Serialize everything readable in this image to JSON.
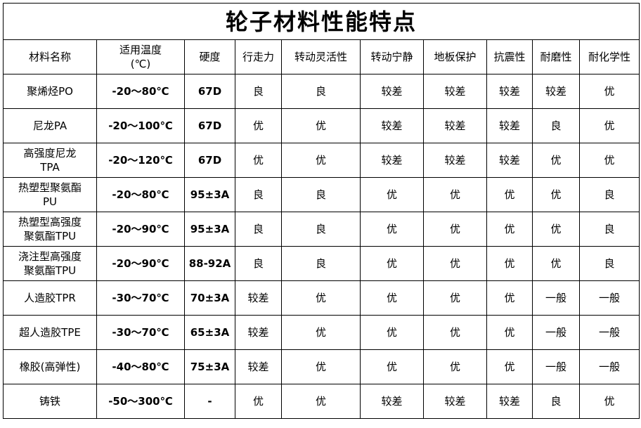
{
  "title": "轮子材料性能特点",
  "headers": [
    "材料名称",
    "适用温度\n(℃)",
    "硬度",
    "行走力",
    "转动灵活性",
    "转动宁静",
    "地板保护",
    "抗震性",
    "耐磨性",
    "耐化学性"
  ],
  "rows": [
    [
      "聚烯烃PO",
      "-20～80℃",
      "67D",
      "良",
      "良",
      "较差",
      "较差",
      "较差",
      "较差",
      "优"
    ],
    [
      "尼龙PA",
      "-20～100℃",
      "67D",
      "优",
      "优",
      "较差",
      "较差",
      "较差",
      "良",
      "优"
    ],
    [
      "高强度尼龙\nTPA",
      "-20～120℃",
      "67D",
      "优",
      "优",
      "较差",
      "较差",
      "较差",
      "优",
      "优"
    ],
    [
      "热塑型聚氨酯\nPU",
      "-20～80℃",
      "95±3A",
      "良",
      "良",
      "优",
      "优",
      "优",
      "优",
      "良"
    ],
    [
      "热塑型高强度\n聚氨酯TPU",
      "-20～90℃",
      "95±3A",
      "良",
      "良",
      "优",
      "优",
      "优",
      "优",
      "良"
    ],
    [
      "浇注型高强度\n聚氨酯TPU",
      "-20～90℃",
      "88-92A",
      "良",
      "良",
      "优",
      "优",
      "优",
      "优",
      "良"
    ],
    [
      "人造胶TPR",
      "-30～70℃",
      "70±3A",
      "较差",
      "优",
      "优",
      "优",
      "优",
      "一般",
      "一般"
    ],
    [
      "超人造胶TPE",
      "-30～70℃",
      "65±3A",
      "较差",
      "优",
      "优",
      "优",
      "优",
      "一般",
      "一般"
    ],
    [
      "橡胶(高弹性)",
      "-40～80℃",
      "75±3A",
      "较差",
      "优",
      "优",
      "优",
      "优",
      "一般",
      "一般"
    ],
    [
      "铸铁",
      "-50～300℃",
      "-",
      "优",
      "优",
      "较差",
      "较差",
      "较差",
      "良",
      "优"
    ]
  ]
}
